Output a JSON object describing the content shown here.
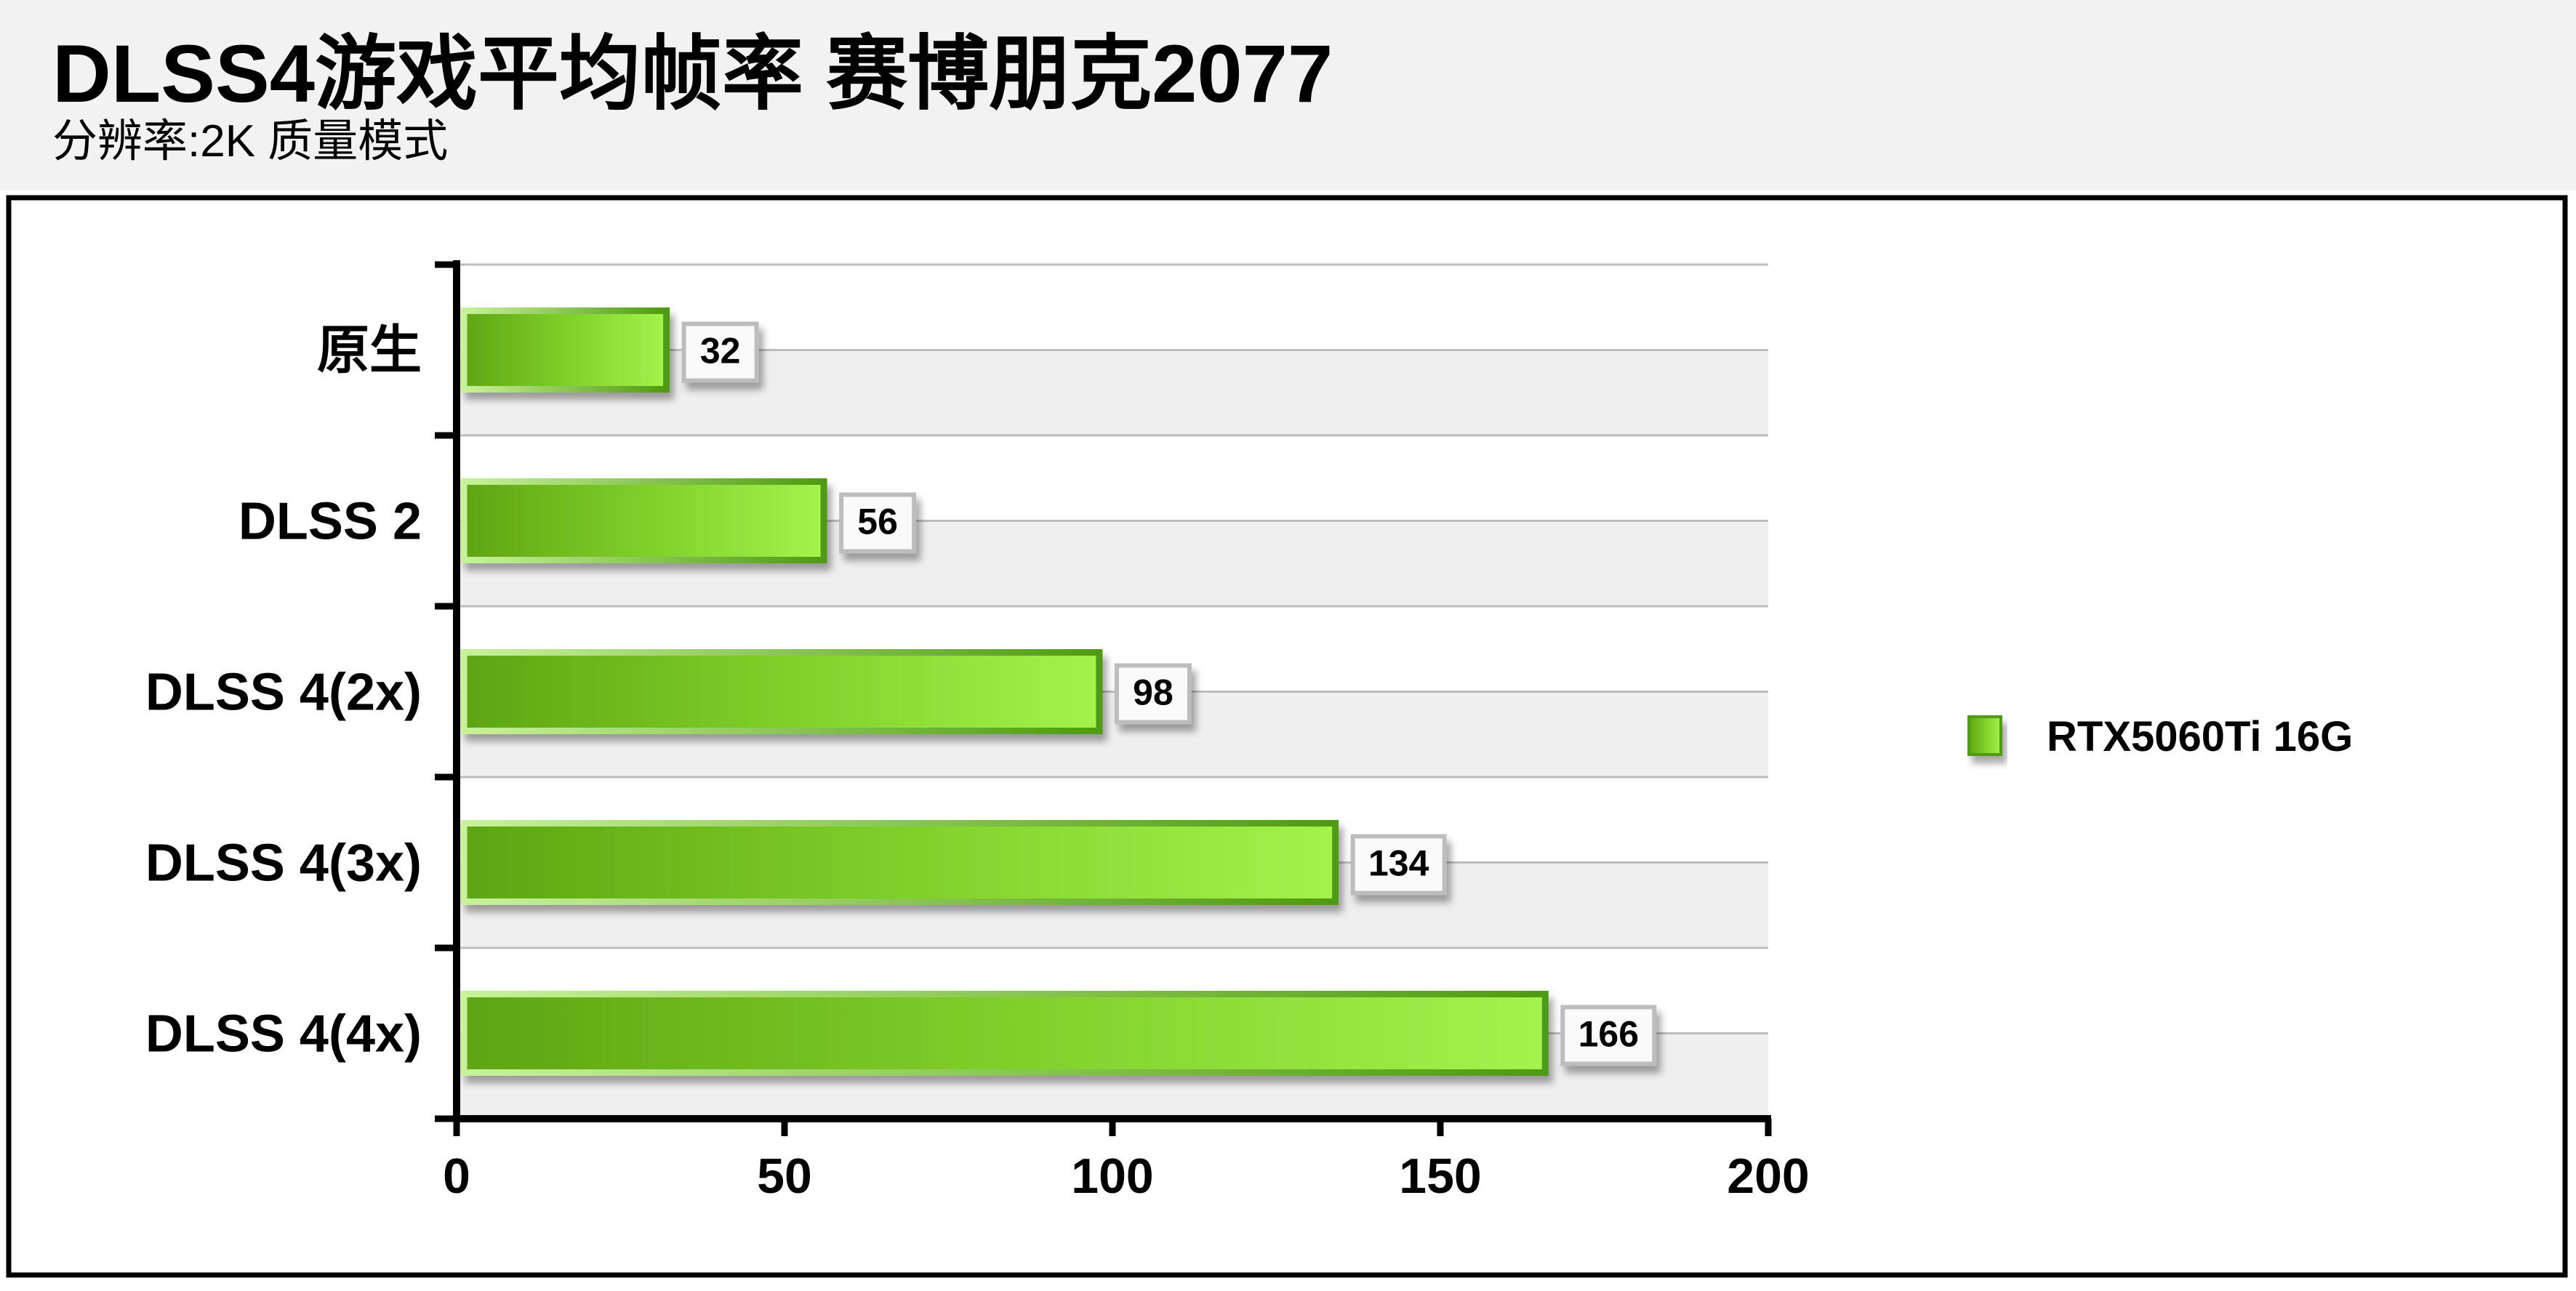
{
  "header": {
    "title": "DLSS4游戏平均帧率 赛博朋克2077",
    "subtitle": "分辨率:2K 质量模式"
  },
  "chart_data": {
    "type": "bar",
    "orientation": "horizontal",
    "title": "DLSS4游戏平均帧率 赛博朋克2077",
    "subtitle": "分辨率:2K 质量模式",
    "categories": [
      "原生",
      "DLSS 2",
      "DLSS 4(2x)",
      "DLSS 4(3x)",
      "DLSS 4(4x)"
    ],
    "series": [
      {
        "name": "RTX5060Ti 16G",
        "values": [
          32,
          56,
          98,
          134,
          166
        ],
        "color": "#76c427"
      }
    ],
    "xlim": [
      0,
      200
    ],
    "xticks": [
      "0",
      "50",
      "100",
      "150",
      "200"
    ],
    "grid": true,
    "legend": "right",
    "data_labels": true
  }
}
